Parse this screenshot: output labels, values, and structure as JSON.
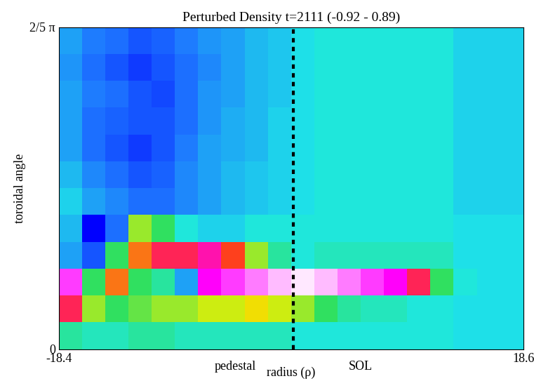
{
  "chart_data": {
    "type": "heatmap",
    "title": "Perturbed Density t=2111 (-0.92 - 0.89)",
    "x_label": "radius (ρ)",
    "y_label": "toroidal angle",
    "annotations": [
      "pedestal",
      "SOL"
    ],
    "xlim": [
      -18.4,
      18.6
    ],
    "xticks": [
      -18.4,
      18.6
    ],
    "ylim": [
      0,
      1.2566
    ],
    "yticks": [
      0,
      {
        "value": 1.2566,
        "label": "2/5 π"
      }
    ],
    "vline": 0.3,
    "color_range": [
      -0.92,
      0.89
    ],
    "x_edges": [
      -18.4,
      -16.55,
      -14.7,
      -12.85,
      -11.0,
      -9.15,
      -7.3,
      -5.45,
      -3.6,
      -1.75,
      0.1,
      1.95,
      3.8,
      5.65,
      7.5,
      9.35,
      11.2,
      13.05,
      14.9,
      16.75,
      18.6
    ],
    "y_edges": [
      0,
      0.1047,
      0.2094,
      0.3142,
      0.4189,
      0.5236,
      0.6283,
      0.733,
      0.8378,
      0.9425,
      1.0472,
      1.1519,
      1.2566
    ],
    "cells": [
      [
        0.1,
        0.05,
        0.05,
        0.1,
        0.1,
        0.05,
        0.05,
        0.05,
        0.05,
        0.05,
        0,
        0,
        0,
        0,
        0,
        0,
        0,
        -0.05,
        -0.05,
        -0.05
      ],
      [
        0.6,
        0.3,
        0.2,
        0.25,
        0.3,
        0.3,
        0.35,
        0.35,
        0.4,
        0.35,
        0.3,
        0.2,
        0.1,
        0.05,
        0.05,
        0,
        0,
        -0.05,
        -0.05,
        -0.05
      ],
      [
        0.75,
        0.2,
        0.5,
        0.2,
        0.1,
        -0.3,
        0.7,
        0.75,
        0.8,
        0.85,
        0.89,
        0.85,
        0.8,
        0.75,
        0.7,
        0.6,
        0.2,
        0,
        -0.05,
        -0.05
      ],
      [
        -0.3,
        -0.6,
        0.2,
        0.5,
        0.6,
        0.6,
        0.65,
        0.55,
        0.3,
        0.1,
        0,
        0.05,
        0.05,
        0.05,
        0.05,
        0.05,
        0.05,
        -0.05,
        -0.05,
        -0.05
      ],
      [
        -0.2,
        -0.92,
        -0.5,
        0.3,
        0.2,
        0,
        -0.1,
        -0.1,
        0,
        0,
        0,
        0,
        0,
        0,
        0,
        0,
        0,
        -0.05,
        -0.05,
        -0.05
      ],
      [
        -0.1,
        -0.3,
        -0.4,
        -0.5,
        -0.5,
        -0.4,
        -0.3,
        -0.2,
        -0.15,
        -0.1,
        -0.05,
        0,
        0,
        0,
        0,
        0,
        0,
        -0.1,
        -0.1,
        -0.1
      ],
      [
        -0.2,
        -0.4,
        -0.5,
        -0.6,
        -0.55,
        -0.4,
        -0.3,
        -0.2,
        -0.15,
        -0.1,
        -0.05,
        0,
        0,
        0,
        0,
        0,
        0,
        -0.1,
        -0.1,
        -0.1
      ],
      [
        -0.3,
        -0.5,
        -0.6,
        -0.7,
        -0.6,
        -0.45,
        -0.3,
        -0.25,
        -0.2,
        -0.1,
        -0.05,
        0,
        0,
        0,
        0,
        0,
        0,
        -0.1,
        -0.1,
        -0.1
      ],
      [
        -0.3,
        -0.5,
        -0.55,
        -0.6,
        -0.6,
        -0.5,
        -0.35,
        -0.25,
        -0.2,
        -0.1,
        -0.05,
        0,
        0,
        0,
        0,
        0,
        0,
        -0.1,
        -0.1,
        -0.1
      ],
      [
        -0.3,
        -0.45,
        -0.5,
        -0.6,
        -0.65,
        -0.5,
        -0.35,
        -0.3,
        -0.2,
        -0.15,
        -0.05,
        0,
        0,
        0,
        0,
        0,
        0,
        -0.1,
        -0.1,
        -0.1
      ],
      [
        -0.35,
        -0.5,
        -0.6,
        -0.7,
        -0.6,
        -0.5,
        -0.4,
        -0.3,
        -0.2,
        -0.15,
        -0.05,
        0,
        0,
        0,
        0,
        0,
        0,
        -0.1,
        -0.1,
        -0.1
      ],
      [
        -0.3,
        -0.45,
        -0.5,
        -0.6,
        -0.55,
        -0.45,
        -0.35,
        -0.3,
        -0.2,
        -0.15,
        -0.05,
        0,
        0,
        0,
        0,
        0,
        0,
        -0.1,
        -0.1,
        -0.1
      ]
    ]
  }
}
